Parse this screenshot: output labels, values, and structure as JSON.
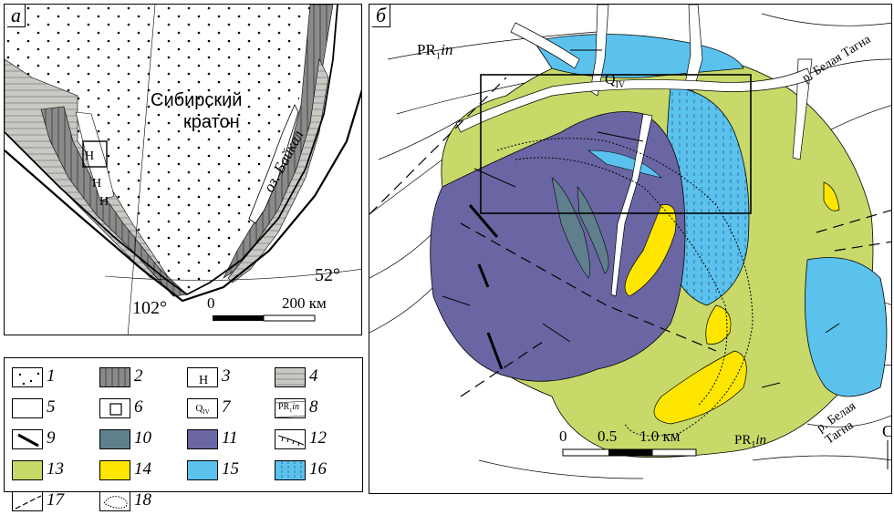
{
  "colors": {
    "granitoid_13": "#c8d96a",
    "yellow_14": "#ffe600",
    "lightblue_15": "#5bc2ee",
    "purple_11": "#6a66a3",
    "slate_10": "#5f7f8d",
    "grey_2": "#8a8a8a",
    "grey_4": "#c9c9c4"
  },
  "panel_a": {
    "label": "а",
    "craton_label_line1": "Сибирский",
    "craton_label_line2": "кратон",
    "lake_label": "оз. Байкал",
    "lat_label": "52°",
    "lon_label": "102°",
    "scale_zero": "0",
    "scale_end": "200 км"
  },
  "panel_b": {
    "label": "б",
    "pr_label_top": "PR",
    "pr_sub": "1",
    "pr_italic": "in",
    "q_label": "Q",
    "q_sub": "IV",
    "river_top": "р. Белая Тагна",
    "river_right": "р. Белая Тагна",
    "pr_label_bottom": "PR",
    "scale_0": "0",
    "scale_05": "0.5",
    "scale_10": "1.0 км",
    "north_letter": "С"
  },
  "legend": [
    {
      "num": "1",
      "icon": "dots-pattern"
    },
    {
      "num": "2",
      "icon": "grey-vertical-hatch"
    },
    {
      "num": "3",
      "icon": "fault-symbol"
    },
    {
      "num": "4",
      "icon": "light-grey-horizontal-hatch"
    },
    {
      "num": "5",
      "icon": "blank-white"
    },
    {
      "num": "6",
      "icon": "square-frame"
    },
    {
      "num": "7",
      "icon": "quaternary-label",
      "text": "Q",
      "sub": "IV"
    },
    {
      "num": "8",
      "icon": "pr-label-lines",
      "text": "PR",
      "sub": "1",
      "ital": "in"
    },
    {
      "num": "9",
      "icon": "thick-line"
    },
    {
      "num": "10",
      "icon": "slate-fill"
    },
    {
      "num": "11",
      "icon": "purple-fill"
    },
    {
      "num": "12",
      "icon": "tick-line"
    },
    {
      "num": "13",
      "icon": "green-fill"
    },
    {
      "num": "14",
      "icon": "yellow-fill"
    },
    {
      "num": "15",
      "icon": "blue-fill"
    },
    {
      "num": "16",
      "icon": "dashed-vertical-hatch"
    },
    {
      "num": "17",
      "icon": "dash-line"
    },
    {
      "num": "18",
      "icon": "dotted-contour"
    }
  ]
}
